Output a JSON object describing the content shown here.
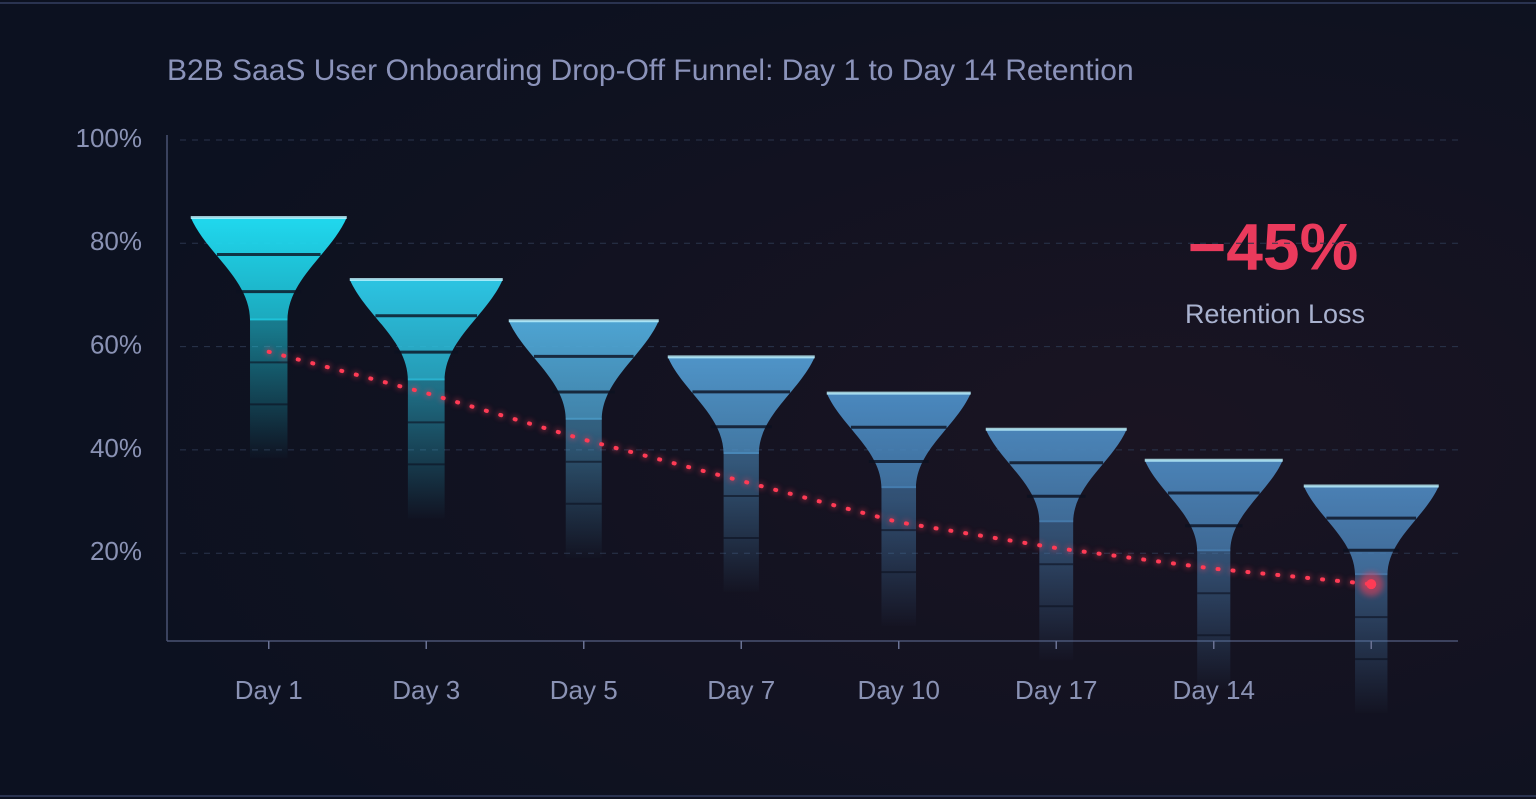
{
  "chart_data": {
    "type": "funnel-bar",
    "title": "B2B SaaS User Onboarding Drop-Off Funnel: Day 1 to Day 14 Retention",
    "categories": [
      "Day 1",
      "Day 3",
      "Day 5",
      "Day 7",
      "Day 10",
      "Day 17",
      "Day 14",
      null
    ],
    "values": [
      85,
      73,
      65,
      58,
      51,
      44,
      38,
      33
    ],
    "colors": [
      "#20d8ee",
      "#2cc4e2",
      "#4ea4d2",
      "#4f94c8",
      "#4a88be",
      "#4a84b8",
      "#4a82b6",
      "#4a80b4"
    ],
    "trend_values": [
      59,
      51,
      42,
      34,
      26,
      21,
      17,
      14
    ],
    "trend_color": "#ff3b55",
    "ylim": [
      3,
      100
    ],
    "yticks": [
      {
        "value": 20,
        "label": "20%"
      },
      {
        "value": 40,
        "label": "40%"
      },
      {
        "value": 60,
        "label": "60%"
      },
      {
        "value": 80,
        "label": "80%"
      },
      {
        "value": 100,
        "label": "100%"
      }
    ],
    "grid": true,
    "annotation": {
      "value": "−45%",
      "label": "Retention Loss",
      "color": "#ea3a5c"
    }
  }
}
